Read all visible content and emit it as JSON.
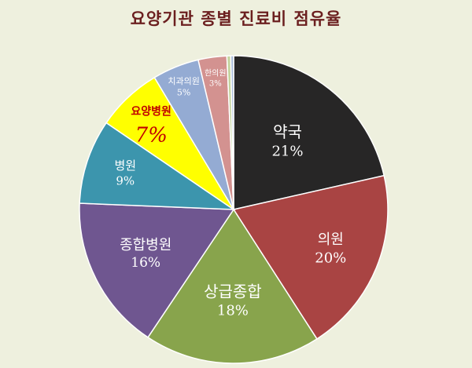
{
  "chart_data": {
    "type": "pie",
    "title": "요양기관 종별 진료비 점유율",
    "slices": [
      {
        "label": "약국",
        "value_text": "21%",
        "value": 21.5,
        "color": "#272626",
        "text_color": "#ffffff"
      },
      {
        "label": "의원",
        "value_text": "20%",
        "value": 19.5,
        "color": "#a94443",
        "text_color": "#ffffff"
      },
      {
        "label": "상급종합",
        "value_text": "18%",
        "value": 18.5,
        "color": "#88a44c",
        "text_color": "#ffffff"
      },
      {
        "label": "종합병원",
        "value_text": "16%",
        "value": 16.3,
        "color": "#6f5690",
        "text_color": "#ffffff"
      },
      {
        "label": "병원",
        "value_text": "9%",
        "value": 8.9,
        "color": "#3c95ad",
        "text_color": "#ffffff"
      },
      {
        "label": "요양병원",
        "value_text": "7%",
        "value": 6.9,
        "color": "#ffff00",
        "text_color": "#c00000"
      },
      {
        "label": "치과의원",
        "value_text": "5%",
        "value": 4.9,
        "color": "#94abd3",
        "text_color": "#ffffff"
      },
      {
        "label": "한의원",
        "value_text": "3%",
        "value": 3.0,
        "color": "#d39290",
        "text_color": "#ffffff"
      },
      {
        "label": "",
        "value_text": "",
        "value": 0.4,
        "color": "#c4d49e",
        "text_color": "#ffffff"
      },
      {
        "label": "",
        "value_text": "",
        "value": 0.3,
        "color": "#a9bcd8",
        "text_color": "#ffffff"
      }
    ]
  }
}
